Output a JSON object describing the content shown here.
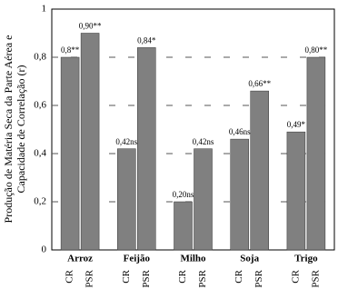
{
  "chart_data": {
    "type": "bar",
    "y_label": [
      "Produção de Matéria Seca da Parte Aérea e",
      "Capacidade de Correlação (r)"
    ],
    "categories": [
      "Arroz",
      "Feijão",
      "Milho",
      "Soja",
      "Trigo"
    ],
    "series": [
      {
        "name": "CR",
        "color": "#808080",
        "values": [
          0.8,
          0.42,
          0.2,
          0.46,
          0.49
        ],
        "value_labels": [
          "0,8**",
          "0,42ns",
          "0,20ns",
          "0,46ns",
          "0,49*"
        ]
      },
      {
        "name": "PSR",
        "color": "#808080",
        "values": [
          0.9,
          0.84,
          0.42,
          0.66,
          0.8
        ],
        "value_labels": [
          "0,90**",
          "0,84*",
          "0,42ns",
          "0,66**",
          "0,80**"
        ]
      }
    ],
    "ylim": [
      0,
      1
    ],
    "yticks": [
      0,
      {
        "value": 0.2,
        "label": "0,2"
      },
      {
        "value": 0.4,
        "label": "0,4"
      },
      {
        "value": 0.6,
        "label": "0,6"
      },
      {
        "value": 0.8,
        "label": "0,8"
      },
      1
    ],
    "grid": true
  }
}
